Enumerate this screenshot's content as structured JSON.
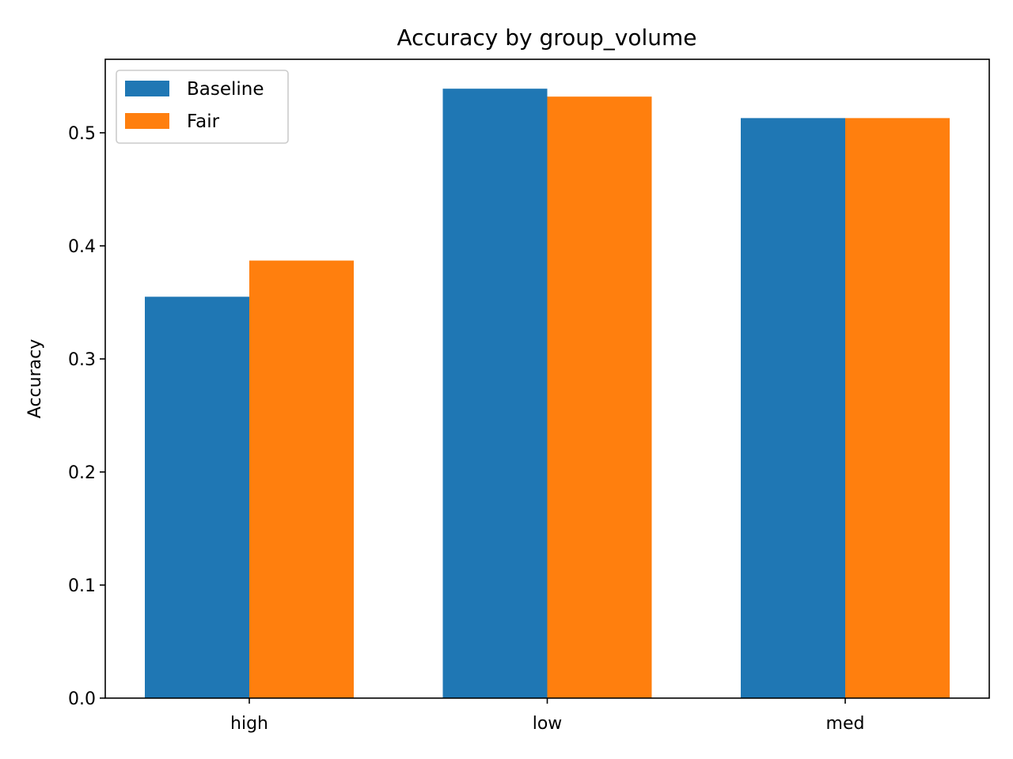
{
  "chart_data": {
    "type": "bar",
    "title": "Accuracy by group_volume",
    "xlabel": "",
    "ylabel": "Accuracy",
    "categories": [
      "high",
      "low",
      "med"
    ],
    "series": [
      {
        "name": "Baseline",
        "color": "#1f77b4",
        "values": [
          0.355,
          0.539,
          0.513
        ]
      },
      {
        "name": "Fair",
        "color": "#ff7f0e",
        "values": [
          0.387,
          0.532,
          0.513
        ]
      }
    ],
    "ylim": [
      0,
      0.565
    ],
    "yticks": [
      0.0,
      0.1,
      0.2,
      0.3,
      0.4,
      0.5
    ],
    "ytick_labels": [
      "0.0",
      "0.1",
      "0.2",
      "0.3",
      "0.4",
      "0.5"
    ],
    "legend_position": "top-left",
    "grid": false
  }
}
